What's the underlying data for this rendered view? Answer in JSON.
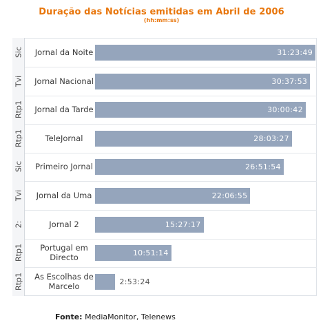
{
  "title": "Duração das Notícias emitidas em Abril de 2006",
  "subtitle": "(hh:mm:ss)",
  "source": {
    "label": "Fonte:",
    "text": "MediaMonitor, Telenews"
  },
  "colors": {
    "title": "#e8760c",
    "bar": "#95a5bc"
  },
  "chart_data": {
    "type": "bar",
    "orientation": "horizontal",
    "categories": [
      {
        "channel": "Sic",
        "program": "Jornal da Noite"
      },
      {
        "channel": "Tvi",
        "program": "Jornal Nacional"
      },
      {
        "channel": "Rtp1",
        "program": "Jornal da Tarde"
      },
      {
        "channel": "Rtp1",
        "program": "TeleJornal"
      },
      {
        "channel": "Sic",
        "program": "Primeiro Jornal"
      },
      {
        "channel": "Tvi",
        "program": "Jornal da Uma"
      },
      {
        "channel": "2:",
        "program": "Jornal 2"
      },
      {
        "channel": "Rtp1",
        "program": "Portugal em Directo"
      },
      {
        "channel": "Rtp1",
        "program": "As Escolhas de Marcelo"
      }
    ],
    "labels": [
      "31:23:49",
      "30:37:53",
      "30:00:42",
      "28:03:27",
      "26:51:54",
      "22:06:55",
      "15:27:17",
      "10:51:14",
      "2:53:24"
    ],
    "values": [
      113029,
      110273,
      108042,
      101007,
      96714,
      79615,
      55637,
      39074,
      10404
    ],
    "units": "seconds",
    "title": "Duração das Notícias emitidas em Abril de 2006",
    "subtitle": "(hh:mm:ss)",
    "grid": false,
    "legend": "none"
  }
}
